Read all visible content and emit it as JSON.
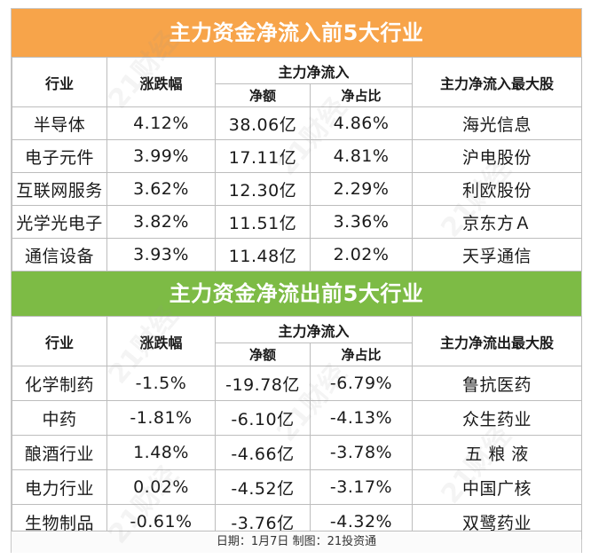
{
  "inflow": {
    "title": "主力资金净流入前5大行业",
    "headers": {
      "industry": "行业",
      "change": "涨跌幅",
      "net_flow_group": "主力净流入",
      "net_amount": "净额",
      "net_ratio": "净占比",
      "top_stock": "主力净流入最大股"
    },
    "rows": [
      {
        "industry": "半导体",
        "change": "4.12%",
        "amount": "38.06亿",
        "ratio": "4.86%",
        "stock": "海光信息"
      },
      {
        "industry": "电子元件",
        "change": "3.99%",
        "amount": "17.11亿",
        "ratio": "4.81%",
        "stock": "沪电股份"
      },
      {
        "industry": "互联网服务",
        "change": "3.62%",
        "amount": "12.30亿",
        "ratio": "2.29%",
        "stock": "利欧股份"
      },
      {
        "industry": "光学光电子",
        "change": "3.82%",
        "amount": "11.51亿",
        "ratio": "3.36%",
        "stock": "京东方Ａ"
      },
      {
        "industry": "通信设备",
        "change": "3.93%",
        "amount": "11.48亿",
        "ratio": "2.02%",
        "stock": "天孚通信"
      }
    ]
  },
  "outflow": {
    "title": "主力资金净流出前5大行业",
    "headers": {
      "industry": "行业",
      "change": "涨跌幅",
      "net_flow_group": "主力净流入",
      "net_amount": "净额",
      "net_ratio": "净占比",
      "top_stock": "主力净流出最大股"
    },
    "rows": [
      {
        "industry": "化学制药",
        "change": "-1.5%",
        "amount": "-19.78亿",
        "ratio": "-6.79%",
        "stock": "鲁抗医药"
      },
      {
        "industry": "中药",
        "change": "-1.81%",
        "amount": "-6.10亿",
        "ratio": "-4.13%",
        "stock": "众生药业"
      },
      {
        "industry": "酿酒行业",
        "change": "1.48%",
        "amount": "-4.66亿",
        "ratio": "-3.78%",
        "stock": "五 粮 液"
      },
      {
        "industry": "电力行业",
        "change": "0.02%",
        "amount": "-4.52亿",
        "ratio": "-3.17%",
        "stock": "中国广核"
      },
      {
        "industry": "生物制品",
        "change": "-0.61%",
        "amount": "-3.76亿",
        "ratio": "-4.32%",
        "stock": "双鹭药业"
      }
    ]
  },
  "footer": "日期：1月7日  制图：21投资通",
  "watermark": "21财经",
  "colors": {
    "inflow_header": "#f7a44a",
    "outflow_header": "#7dbb45"
  }
}
